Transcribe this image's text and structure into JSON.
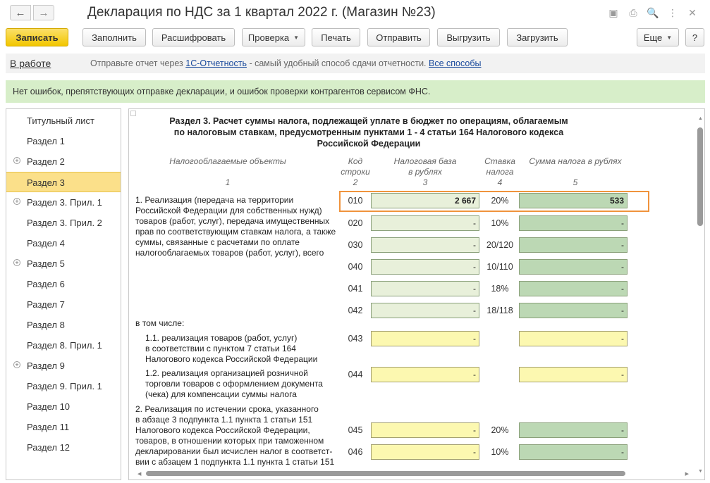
{
  "window": {
    "title": "Декларация по НДС за 1 квартал 2022 г. (Магазин №23)",
    "nav_back": "←",
    "nav_forward": "→",
    "icons": [
      "save-icon",
      "print-icon",
      "preview-icon",
      "more-icon",
      "close-icon"
    ],
    "icon_glyphs": [
      "▣",
      "⎙",
      "🔍",
      "⋮",
      "✕"
    ]
  },
  "toolbar": {
    "save_label": "Записать",
    "fill_label": "Заполнить",
    "decode_label": "Расшифровать",
    "check_label": "Проверка",
    "print_label": "Печать",
    "send_label": "Отправить",
    "export_label": "Выгрузить",
    "import_label": "Загрузить",
    "more_label": "Еще",
    "help_label": "?"
  },
  "status": {
    "state": "В работе",
    "prefix": "Отправьте отчет через",
    "link": "1С-Отчетность",
    "middle": "- самый удобный способ сдачи отчетности.",
    "all_link": "Все способы"
  },
  "info": {
    "message": "Нет ошибок, препятствующих отправке декларации, и ошибок проверки контрагентов сервисом ФНС."
  },
  "sidebar": {
    "items": [
      {
        "label": "Титульный лист",
        "expandable": false,
        "active": false
      },
      {
        "label": "Раздел 1",
        "expandable": false,
        "active": false
      },
      {
        "label": "Раздел 2",
        "expandable": true,
        "active": false
      },
      {
        "label": "Раздел 3",
        "expandable": false,
        "active": true
      },
      {
        "label": "Раздел 3. Прил. 1",
        "expandable": true,
        "active": false
      },
      {
        "label": "Раздел 3. Прил. 2",
        "expandable": false,
        "active": false
      },
      {
        "label": "Раздел 4",
        "expandable": false,
        "active": false
      },
      {
        "label": "Раздел 5",
        "expandable": true,
        "active": false
      },
      {
        "label": "Раздел 6",
        "expandable": false,
        "active": false
      },
      {
        "label": "Раздел 7",
        "expandable": false,
        "active": false
      },
      {
        "label": "Раздел 8",
        "expandable": false,
        "active": false
      },
      {
        "label": "Раздел 8. Прил. 1",
        "expandable": false,
        "active": false
      },
      {
        "label": "Раздел 9",
        "expandable": true,
        "active": false
      },
      {
        "label": "Раздел 9. Прил. 1",
        "expandable": false,
        "active": false
      },
      {
        "label": "Раздел 10",
        "expandable": false,
        "active": false
      },
      {
        "label": "Раздел 11",
        "expandable": false,
        "active": false
      },
      {
        "label": "Раздел 12",
        "expandable": false,
        "active": false
      }
    ]
  },
  "form": {
    "heading_1": "Раздел 3. Расчет суммы налога, подлежащей уплате в бюджет по операциям, облагаемым",
    "heading_2": "по налоговым ставкам, предусмотренным пунктами 1 - 4 статьи 164 Налогового кодекса",
    "heading_3": "Российской Федерации",
    "columns": {
      "objects": "Налогооблагаемые объекты",
      "code_1": "Код",
      "code_2": "строки",
      "base_1": "Налоговая база",
      "base_2": "в рублях",
      "rate_1": "Ставка",
      "rate_2": "налога",
      "tax": "Сумма налога в рублях",
      "n1": "1",
      "n2": "2",
      "n3": "3",
      "n4": "4",
      "n5": "5"
    },
    "desc_1": [
      "1. Реализация (передача на территории",
      "Российской Федерации для собственных нужд)",
      "товаров (работ, услуг), передача имущественных",
      "прав по соответствующим ставкам налога, а также",
      "суммы, связанные с расчетами по оплате",
      "налогооблагаемых товаров (работ, услуг), всего"
    ],
    "desc_incl": "в том числе:",
    "desc_11": [
      "1.1. реализация товаров (работ, услуг)",
      "в соответствии с пунктом 7 статьи 164",
      "Налогового кодекса Российской Федерации"
    ],
    "desc_12": [
      "1.2. реализация организацией розничной",
      "торговли товаров с оформлением документа",
      "(чека) для компенсации суммы налога"
    ],
    "desc_2": [
      "2. Реализация по истечении срока, указанного",
      "в абзаце 3 подпункта 1.1 пункта 1 статьи 151",
      "Налогового кодекса Российской Федерации,",
      "товаров, в отношении которых при таможенном",
      "декларировании был исчислен налог в соответст-",
      "вии с абзацем 1 подпункта 1.1 пункта 1 статьи 151"
    ],
    "rows": [
      {
        "code": "010",
        "base": "2 667",
        "rate": "20%",
        "tax": "533"
      },
      {
        "code": "020",
        "base": "-",
        "rate": "10%",
        "tax": "-"
      },
      {
        "code": "030",
        "base": "-",
        "rate": "20/120",
        "tax": "-"
      },
      {
        "code": "040",
        "base": "-",
        "rate": "10/110",
        "tax": "-"
      },
      {
        "code": "041",
        "base": "-",
        "rate": "18%",
        "tax": "-"
      },
      {
        "code": "042",
        "base": "-",
        "rate": "18/118",
        "tax": "-"
      },
      {
        "code": "043",
        "base": "-",
        "rate": "",
        "tax": "-"
      },
      {
        "code": "044",
        "base": "-",
        "rate": "",
        "tax": "-"
      },
      {
        "code": "045",
        "base": "-",
        "rate": "20%",
        "tax": "-"
      },
      {
        "code": "046",
        "base": "-",
        "rate": "10%",
        "tax": "-"
      }
    ]
  }
}
